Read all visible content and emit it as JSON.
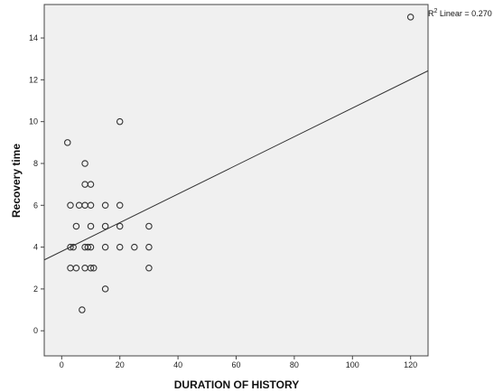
{
  "chart_data": {
    "type": "scatter",
    "xlabel": "DURATION OF HISTORY",
    "ylabel": "Recovery time",
    "xlim": [
      -6,
      126
    ],
    "ylim": [
      -1.2,
      15.6
    ],
    "x_ticks": [
      0,
      20,
      40,
      60,
      80,
      100,
      120
    ],
    "y_ticks": [
      0,
      2,
      4,
      6,
      8,
      10,
      12,
      14
    ],
    "grid": false,
    "plot_background": "#f0f0f0",
    "marker": "open-circle",
    "fit_line": {
      "type": "linear",
      "label_prefix": "R",
      "label_sup": "2",
      "label_suffix": " Linear = 0.270",
      "intercept": 3.8,
      "slope": 0.0685
    },
    "points": [
      {
        "x": 2,
        "y": 9
      },
      {
        "x": 3,
        "y": 6
      },
      {
        "x": 3,
        "y": 4
      },
      {
        "x": 3,
        "y": 3
      },
      {
        "x": 4,
        "y": 4
      },
      {
        "x": 5,
        "y": 5
      },
      {
        "x": 5,
        "y": 3
      },
      {
        "x": 6,
        "y": 6
      },
      {
        "x": 7,
        "y": 1
      },
      {
        "x": 8,
        "y": 8
      },
      {
        "x": 8,
        "y": 7
      },
      {
        "x": 8,
        "y": 6
      },
      {
        "x": 8,
        "y": 4
      },
      {
        "x": 8,
        "y": 3
      },
      {
        "x": 9,
        "y": 4
      },
      {
        "x": 10,
        "y": 7
      },
      {
        "x": 10,
        "y": 6
      },
      {
        "x": 10,
        "y": 5
      },
      {
        "x": 10,
        "y": 4
      },
      {
        "x": 10,
        "y": 3
      },
      {
        "x": 11,
        "y": 3
      },
      {
        "x": 15,
        "y": 6
      },
      {
        "x": 15,
        "y": 5
      },
      {
        "x": 15,
        "y": 4
      },
      {
        "x": 15,
        "y": 2
      },
      {
        "x": 20,
        "y": 10
      },
      {
        "x": 20,
        "y": 6
      },
      {
        "x": 20,
        "y": 5
      },
      {
        "x": 20,
        "y": 4
      },
      {
        "x": 25,
        "y": 4
      },
      {
        "x": 30,
        "y": 5
      },
      {
        "x": 30,
        "y": 4
      },
      {
        "x": 30,
        "y": 3
      },
      {
        "x": 120,
        "y": 15
      }
    ]
  }
}
